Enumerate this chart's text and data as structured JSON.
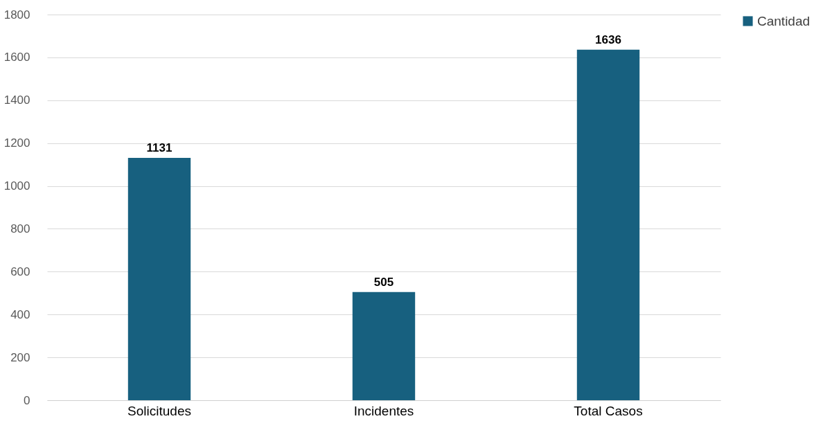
{
  "chart_data": {
    "type": "bar",
    "categories": [
      "Solicitudes",
      "Incidentes",
      "Total Casos"
    ],
    "series": [
      {
        "name": "Cantidad",
        "color": "#17607f",
        "values": [
          1131,
          505,
          1636
        ]
      }
    ],
    "ylim": [
      0,
      1800
    ],
    "yticks": [
      0,
      200,
      400,
      600,
      800,
      1000,
      1200,
      1400,
      1600,
      1800
    ],
    "grid": "y",
    "legend": "right",
    "data_labels": true
  }
}
